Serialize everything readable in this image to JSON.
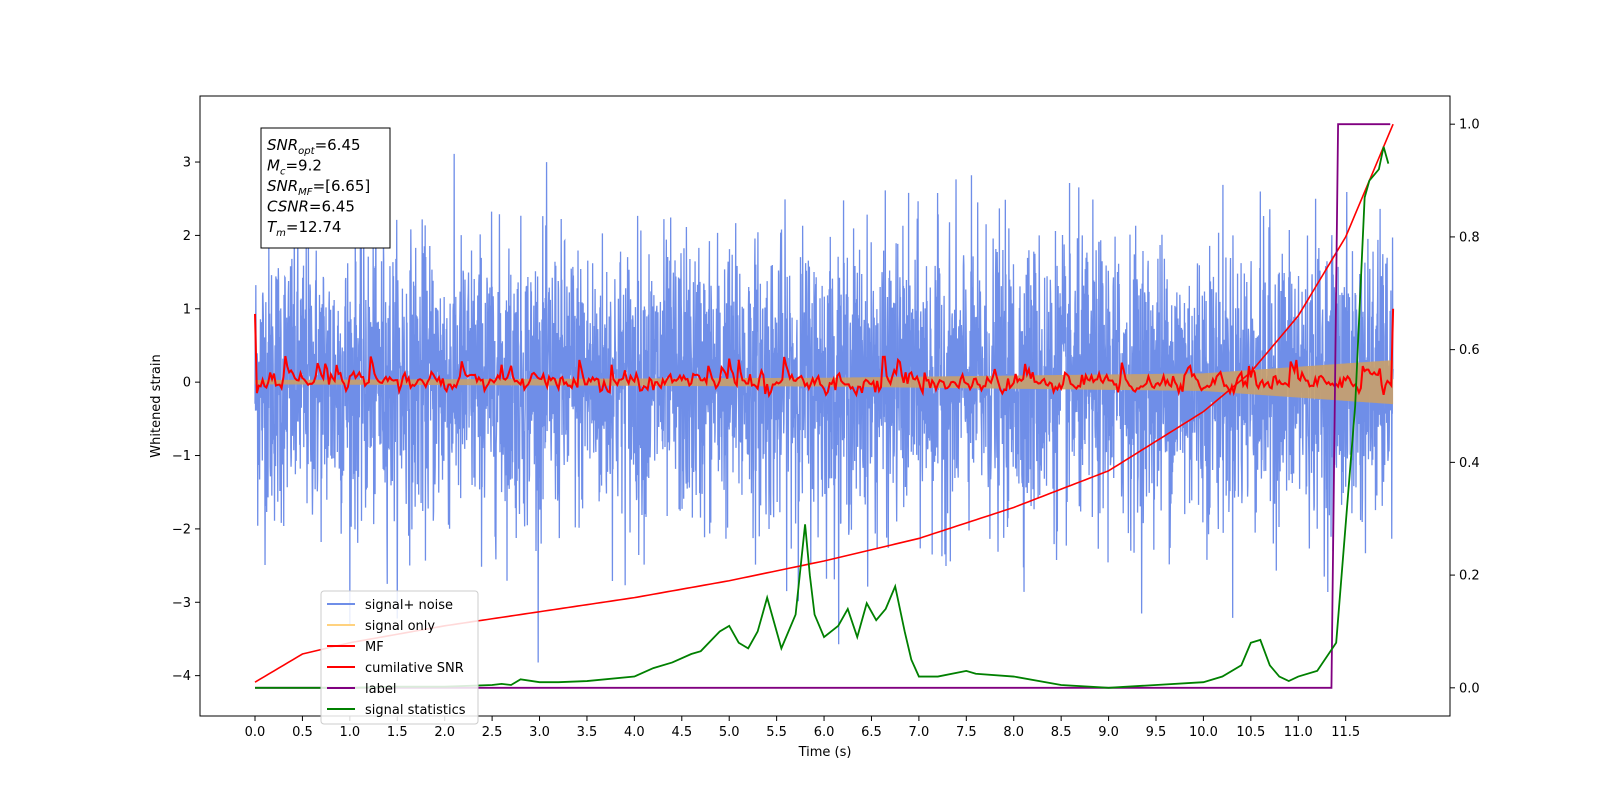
{
  "chart_data": {
    "type": "line",
    "xlabel": "Time (s)",
    "ylabel": "Whitened strain",
    "xlim": [
      -0.58,
      12.6
    ],
    "ylim": [
      -4.55,
      3.9
    ],
    "y2lim": [
      -0.05,
      1.05
    ],
    "x_ticks": [
      "0.0",
      "0.5",
      "1.0",
      "1.5",
      "2.0",
      "2.5",
      "3.0",
      "3.5",
      "4.0",
      "4.5",
      "5.0",
      "5.5",
      "6.0",
      "6.5",
      "7.0",
      "7.5",
      "8.0",
      "8.5",
      "9.0",
      "9.5",
      "10.0",
      "10.5",
      "11.0",
      "11.5"
    ],
    "y_ticks": [
      "−4",
      "−3",
      "−2",
      "−1",
      "0",
      "1",
      "2",
      "3"
    ],
    "y2_ticks": [
      "0.0",
      "0.2",
      "0.4",
      "0.6",
      "0.8",
      "1.0"
    ],
    "annotation_lines": [
      {
        "sym": "SNR",
        "sub": "opt",
        "val": "=6.45"
      },
      {
        "sym": "M",
        "sub": "c",
        "val": "=9.2"
      },
      {
        "sym": "SNR",
        "sub": "MF",
        "val": "=[6.65]"
      },
      {
        "sym": "CSNR",
        "sub": "",
        "val": "=6.45"
      },
      {
        "sym": "T",
        "sub": "m",
        "val": "=12.74"
      }
    ],
    "legend": [
      {
        "label": "signal+ noise",
        "color": "#6f8ee8"
      },
      {
        "label": "signal only",
        "color": "#ffd27f"
      },
      {
        "label": "MF",
        "color": "#ff0000"
      },
      {
        "label": "cumilative SNR",
        "color": "#ff0000"
      },
      {
        "label": "label",
        "color": "#800080"
      },
      {
        "label": "signal statistics",
        "color": "#008000"
      }
    ],
    "legend_position": "lower-left",
    "series": [
      {
        "name": "signal+ noise",
        "axis": "left",
        "color": "#6f8ee8",
        "x_range": [
          0.0,
          12.0
        ],
        "noise_std": 0.95,
        "max": 3.6,
        "min": -3.92
      },
      {
        "name": "signal only",
        "axis": "left",
        "color": "#ffd27f",
        "x_range": [
          0.0,
          12.0
        ],
        "envelope": [
          [
            0.0,
            0.03
          ],
          [
            6.0,
            0.06
          ],
          [
            10.0,
            0.12
          ],
          [
            12.0,
            0.3
          ]
        ]
      },
      {
        "name": "MF",
        "axis": "left",
        "color": "#ff0000",
        "x": [
          0.0,
          0.15,
          0.6,
          1.0,
          1.3,
          2.9,
          4.4,
          6.3,
          6.7,
          10.3,
          12.0
        ],
        "y": [
          0.93,
          -0.15,
          0.33,
          0.15,
          0.33,
          0.27,
          0.52,
          0.46,
          0.3,
          0.35,
          1.0
        ]
      },
      {
        "name": "cumilative SNR",
        "axis": "right",
        "color": "#ff0000",
        "x": [
          0.0,
          0.5,
          1.0,
          2.0,
          3.0,
          4.0,
          5.0,
          6.0,
          7.0,
          8.0,
          9.0,
          10.0,
          10.5,
          11.0,
          11.5,
          12.0
        ],
        "y": [
          0.01,
          0.06,
          0.08,
          0.11,
          0.135,
          0.16,
          0.19,
          0.225,
          0.265,
          0.32,
          0.385,
          0.49,
          0.56,
          0.66,
          0.8,
          1.0
        ]
      },
      {
        "name": "label",
        "axis": "right",
        "color": "#800080",
        "x": [
          0.0,
          11.35,
          11.42,
          11.97
        ],
        "y": [
          0.0,
          0.0,
          1.0,
          1.0
        ]
      },
      {
        "name": "signal statistics",
        "axis": "right",
        "color": "#008000",
        "x": [
          0.0,
          0.5,
          1.0,
          1.5,
          2.0,
          2.5,
          2.6,
          2.7,
          2.8,
          3.0,
          3.2,
          3.5,
          4.0,
          4.2,
          4.4,
          4.6,
          4.7,
          4.9,
          5.0,
          5.1,
          5.2,
          5.3,
          5.4,
          5.55,
          5.7,
          5.8,
          5.85,
          5.9,
          6.0,
          6.15,
          6.25,
          6.35,
          6.45,
          6.55,
          6.65,
          6.75,
          6.85,
          6.92,
          7.0,
          7.2,
          7.5,
          7.6,
          8.0,
          8.5,
          9.0,
          9.5,
          10.0,
          10.2,
          10.4,
          10.5,
          10.6,
          10.7,
          10.8,
          10.9,
          11.0,
          11.2,
          11.4,
          11.6,
          11.7,
          11.75,
          11.8,
          11.85,
          11.9,
          11.95
        ],
        "y": [
          0.0,
          0.0,
          0.0,
          0.002,
          0.002,
          0.005,
          0.007,
          0.005,
          0.015,
          0.01,
          0.01,
          0.012,
          0.02,
          0.035,
          0.045,
          0.06,
          0.065,
          0.1,
          0.11,
          0.08,
          0.07,
          0.1,
          0.16,
          0.07,
          0.13,
          0.29,
          0.2,
          0.13,
          0.09,
          0.11,
          0.14,
          0.09,
          0.15,
          0.12,
          0.14,
          0.18,
          0.1,
          0.05,
          0.02,
          0.02,
          0.03,
          0.025,
          0.02,
          0.005,
          0.0,
          0.005,
          0.01,
          0.02,
          0.04,
          0.08,
          0.085,
          0.04,
          0.02,
          0.012,
          0.02,
          0.03,
          0.08,
          0.5,
          0.87,
          0.9,
          0.91,
          0.92,
          0.96,
          0.93
        ]
      }
    ]
  }
}
